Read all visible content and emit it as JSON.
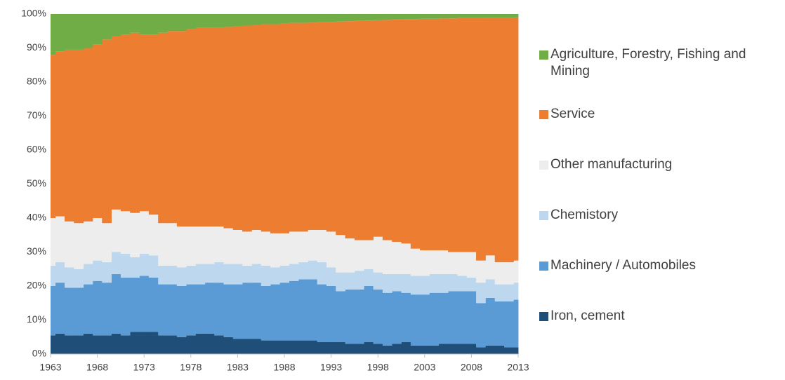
{
  "chart_data": {
    "type": "stacked-step-area",
    "x": [
      1963,
      1964,
      1965,
      1966,
      1967,
      1968,
      1969,
      1970,
      1971,
      1972,
      1973,
      1974,
      1975,
      1976,
      1977,
      1978,
      1979,
      1980,
      1981,
      1982,
      1983,
      1984,
      1985,
      1986,
      1987,
      1988,
      1989,
      1990,
      1991,
      1992,
      1993,
      1994,
      1995,
      1996,
      1997,
      1998,
      1999,
      2000,
      2001,
      2002,
      2003,
      2004,
      2005,
      2006,
      2007,
      2008,
      2009,
      2010,
      2011,
      2012,
      2013
    ],
    "xlim": [
      1963,
      2013
    ],
    "xticks": [
      1963,
      1968,
      1973,
      1978,
      1983,
      1988,
      1993,
      1998,
      2003,
      2008,
      2013
    ],
    "ylim": [
      0,
      100
    ],
    "yticks": [
      {
        "value": 0,
        "label": "0%"
      },
      {
        "value": 10,
        "label": "10%"
      },
      {
        "value": 20,
        "label": "20%"
      },
      {
        "value": 30,
        "label": "30%"
      },
      {
        "value": 40,
        "label": "40%"
      },
      {
        "value": 50,
        "label": "50%"
      },
      {
        "value": 60,
        "label": "60%"
      },
      {
        "value": 70,
        "label": "70%"
      },
      {
        "value": 80,
        "label": "80%"
      },
      {
        "value": 90,
        "label": "90%"
      },
      {
        "value": 100,
        "label": "100%"
      }
    ],
    "grid": false,
    "legend": "right",
    "series": [
      {
        "name": "Iron, cement",
        "color": "#1f4e79",
        "values": [
          5.5,
          6,
          5.5,
          5.5,
          6,
          5.5,
          5.5,
          6,
          5.5,
          6.5,
          6.5,
          6.5,
          5.5,
          5.5,
          5,
          5.5,
          6,
          6,
          5.5,
          5,
          4.5,
          4.5,
          4.5,
          4,
          4,
          4,
          4,
          4,
          4,
          3.5,
          3.5,
          3.5,
          3,
          3,
          3.5,
          3,
          2.5,
          3,
          3.5,
          2.5,
          2.5,
          2.5,
          3,
          3,
          3,
          3,
          2,
          2.5,
          2.5,
          2,
          2
        ]
      },
      {
        "name": "Machinery / Automobiles",
        "color": "#5b9bd5",
        "values": [
          14.5,
          15,
          14,
          14,
          14.5,
          16,
          15.5,
          17.5,
          17,
          16,
          16.5,
          16,
          15,
          15,
          15,
          15,
          14.5,
          15,
          15.5,
          15.5,
          16,
          16.5,
          16.5,
          16,
          16.5,
          17,
          17.5,
          18,
          18,
          17,
          16.5,
          15,
          16,
          16,
          16.5,
          16,
          15.5,
          15.5,
          14.5,
          15,
          15,
          15.5,
          15,
          15.5,
          15.5,
          15.5,
          13,
          14,
          13,
          13.5,
          14
        ]
      },
      {
        "name": "Chemistory",
        "color": "#bdd7ee",
        "values": [
          6,
          6,
          6,
          5.5,
          6,
          6,
          6,
          6.5,
          7,
          6,
          6.5,
          6.5,
          5.5,
          5.5,
          5.5,
          5.5,
          6,
          5.5,
          6,
          6,
          6,
          5,
          5.5,
          6,
          5,
          5,
          5,
          5,
          5.5,
          6.5,
          5.5,
          5.5,
          5,
          5.5,
          5,
          5,
          5.5,
          5,
          5.5,
          5.5,
          5.5,
          5.5,
          5.5,
          5,
          4.5,
          4,
          6,
          5.5,
          5,
          5,
          5
        ]
      },
      {
        "name": "Other manufacturing",
        "color": "#ededed",
        "values": [
          14,
          13.5,
          13.5,
          13.5,
          12.5,
          12.5,
          11.5,
          12.5,
          12.5,
          13,
          12.5,
          12,
          12.5,
          12.5,
          12,
          11.5,
          11,
          11,
          10.5,
          10.5,
          10,
          10,
          10,
          10,
          10,
          9.5,
          9.5,
          9,
          9,
          9.5,
          10.5,
          11,
          10,
          9,
          8.5,
          10.5,
          10,
          9.5,
          9,
          8,
          7.5,
          7,
          7,
          6.5,
          7,
          7.5,
          6.5,
          7,
          6.5,
          6.5,
          6.5
        ]
      },
      {
        "name": "Service",
        "color": "#ed7d31",
        "values": [
          48,
          48.5,
          50.5,
          51,
          51,
          51,
          54,
          51,
          52,
          53,
          52,
          53,
          56,
          56.5,
          57.5,
          58,
          58.5,
          58.5,
          58.5,
          59.2,
          59.9,
          60.6,
          60.3,
          61,
          61.5,
          61.7,
          61.4,
          61.4,
          61,
          61.1,
          61.7,
          62.8,
          63.9,
          64.5,
          64.6,
          63.7,
          64.8,
          65.4,
          66,
          67.5,
          68.1,
          68.1,
          68.2,
          68.7,
          68.8,
          68.8,
          71.3,
          69.9,
          71.9,
          71.9,
          71.5
        ]
      },
      {
        "name": "Agriculture, Forestry, Fishing and Mining",
        "color": "#70ad47",
        "values": [
          12,
          11,
          10.5,
          10.5,
          10,
          9,
          7.5,
          6.5,
          6,
          5.5,
          6,
          6,
          5.5,
          5,
          5,
          4.5,
          4,
          4,
          4,
          3.8,
          3.6,
          3.4,
          3.2,
          3,
          3,
          2.8,
          2.6,
          2.6,
          2.5,
          2.4,
          2.3,
          2.2,
          2.1,
          2,
          1.9,
          1.8,
          1.7,
          1.6,
          1.5,
          1.5,
          1.4,
          1.4,
          1.3,
          1.3,
          1.2,
          1.2,
          1.2,
          1.1,
          1.1,
          1.1,
          1
        ]
      }
    ]
  }
}
